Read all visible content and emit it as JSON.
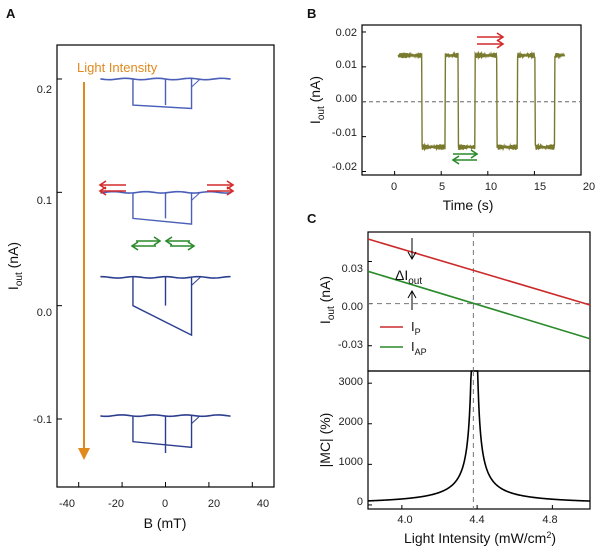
{
  "panels": {
    "a": {
      "label": "A"
    },
    "b": {
      "label": "B"
    },
    "c": {
      "label": "C"
    }
  },
  "chart_data": [
    {
      "id": "A",
      "type": "line",
      "xlabel": "B (mT)",
      "ylabel": "I_out (nA)",
      "xlim": [
        -50,
        50
      ],
      "ylim": [
        -0.16,
        0.23
      ],
      "xticks": [
        "-40",
        "-20",
        "0",
        "20",
        "40"
      ],
      "yticks": [
        "0.2",
        "0.1",
        "0.0",
        "-0.1"
      ],
      "annotation": "Light Intensity",
      "annotation_color": "#e08a1e",
      "line_color": "#4a5fb8",
      "upper_level_nA": [
        0.2,
        0.1,
        0.025,
        -0.097
      ],
      "loop_floors_nA": [
        [
          0.177,
          0.174
        ],
        [
          0.077,
          0.072
        ],
        [
          0.0,
          -0.026
        ],
        [
          -0.12,
          -0.125
        ]
      ],
      "switch_fields_mT": [
        -15,
        0,
        12
      ]
    },
    {
      "id": "B",
      "type": "line",
      "xlabel": "Time (s)",
      "ylabel": "I_out (nA)",
      "xlim": [
        -3.5,
        20
      ],
      "ylim": [
        -0.021,
        0.022
      ],
      "xticks": [
        "0",
        "5",
        "10",
        "15",
        "20"
      ],
      "yticks": [
        "0.02",
        "0.01",
        "0.00",
        "-0.01",
        "-0.02"
      ],
      "line_color": "#7a7a2e",
      "levels_nA": [
        0.0133,
        -0.013
      ],
      "transitions_s": [
        0.4,
        2.9,
        5.4,
        6.8,
        8.6,
        11.0,
        13.2,
        15.1,
        17.2
      ]
    },
    {
      "id": "C-top",
      "type": "line",
      "ylabel": "I_out (nA)",
      "xlim": [
        3.82,
        5.0
      ],
      "ylim": [
        -0.048,
        0.051
      ],
      "yticks": [
        "0.03",
        "0.00",
        "-0.03"
      ],
      "annotation": "ΔI_out",
      "series": [
        {
          "name": "I_P",
          "color": "#cc2a2a",
          "x": [
            3.82,
            5.0
          ],
          "y": [
            0.046,
            -0.001
          ]
        },
        {
          "name": "I_AP",
          "color": "#2a8a2a",
          "x": [
            3.82,
            5.0
          ],
          "y": [
            0.023,
            -0.025
          ]
        }
      ],
      "crossing_x": 4.38
    },
    {
      "id": "C-bottom",
      "type": "line",
      "xlabel": "Light Intensity (mW/cm²)",
      "ylabel": "|MC| (%)",
      "xlim": [
        3.82,
        5.0
      ],
      "ylim": [
        -100,
        3300
      ],
      "xticks": [
        "4.0",
        "4.4",
        "4.8"
      ],
      "yticks": [
        "3000",
        "2000",
        "1000",
        "0"
      ],
      "pole_x": 4.38
    }
  ]
}
